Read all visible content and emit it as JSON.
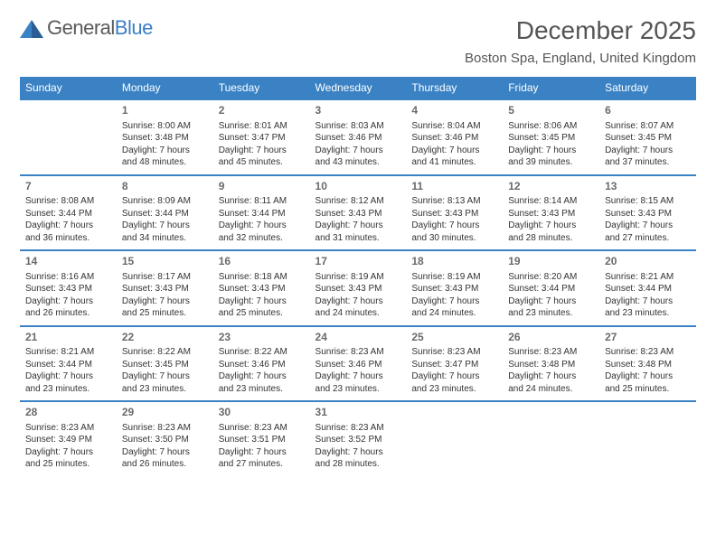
{
  "brand": {
    "name_part1": "General",
    "name_part2": "Blue"
  },
  "title": {
    "month": "December 2025",
    "location": "Boston Spa, England, United Kingdom"
  },
  "colors": {
    "header_bg": "#3a82c4",
    "header_text": "#ffffff",
    "rule": "#3a82c4",
    "text": "#333333",
    "muted": "#6a6a6a"
  },
  "fonts": {
    "title_size": 28,
    "location_size": 15,
    "dayhead_size": 12,
    "daynum_size": 12,
    "body_size": 10
  },
  "day_headers": [
    "Sunday",
    "Monday",
    "Tuesday",
    "Wednesday",
    "Thursday",
    "Friday",
    "Saturday"
  ],
  "weeks": [
    [
      null,
      {
        "n": "1",
        "sunrise": "Sunrise: 8:00 AM",
        "sunset": "Sunset: 3:48 PM",
        "d1": "Daylight: 7 hours",
        "d2": "and 48 minutes."
      },
      {
        "n": "2",
        "sunrise": "Sunrise: 8:01 AM",
        "sunset": "Sunset: 3:47 PM",
        "d1": "Daylight: 7 hours",
        "d2": "and 45 minutes."
      },
      {
        "n": "3",
        "sunrise": "Sunrise: 8:03 AM",
        "sunset": "Sunset: 3:46 PM",
        "d1": "Daylight: 7 hours",
        "d2": "and 43 minutes."
      },
      {
        "n": "4",
        "sunrise": "Sunrise: 8:04 AM",
        "sunset": "Sunset: 3:46 PM",
        "d1": "Daylight: 7 hours",
        "d2": "and 41 minutes."
      },
      {
        "n": "5",
        "sunrise": "Sunrise: 8:06 AM",
        "sunset": "Sunset: 3:45 PM",
        "d1": "Daylight: 7 hours",
        "d2": "and 39 minutes."
      },
      {
        "n": "6",
        "sunrise": "Sunrise: 8:07 AM",
        "sunset": "Sunset: 3:45 PM",
        "d1": "Daylight: 7 hours",
        "d2": "and 37 minutes."
      }
    ],
    [
      {
        "n": "7",
        "sunrise": "Sunrise: 8:08 AM",
        "sunset": "Sunset: 3:44 PM",
        "d1": "Daylight: 7 hours",
        "d2": "and 36 minutes."
      },
      {
        "n": "8",
        "sunrise": "Sunrise: 8:09 AM",
        "sunset": "Sunset: 3:44 PM",
        "d1": "Daylight: 7 hours",
        "d2": "and 34 minutes."
      },
      {
        "n": "9",
        "sunrise": "Sunrise: 8:11 AM",
        "sunset": "Sunset: 3:44 PM",
        "d1": "Daylight: 7 hours",
        "d2": "and 32 minutes."
      },
      {
        "n": "10",
        "sunrise": "Sunrise: 8:12 AM",
        "sunset": "Sunset: 3:43 PM",
        "d1": "Daylight: 7 hours",
        "d2": "and 31 minutes."
      },
      {
        "n": "11",
        "sunrise": "Sunrise: 8:13 AM",
        "sunset": "Sunset: 3:43 PM",
        "d1": "Daylight: 7 hours",
        "d2": "and 30 minutes."
      },
      {
        "n": "12",
        "sunrise": "Sunrise: 8:14 AM",
        "sunset": "Sunset: 3:43 PM",
        "d1": "Daylight: 7 hours",
        "d2": "and 28 minutes."
      },
      {
        "n": "13",
        "sunrise": "Sunrise: 8:15 AM",
        "sunset": "Sunset: 3:43 PM",
        "d1": "Daylight: 7 hours",
        "d2": "and 27 minutes."
      }
    ],
    [
      {
        "n": "14",
        "sunrise": "Sunrise: 8:16 AM",
        "sunset": "Sunset: 3:43 PM",
        "d1": "Daylight: 7 hours",
        "d2": "and 26 minutes."
      },
      {
        "n": "15",
        "sunrise": "Sunrise: 8:17 AM",
        "sunset": "Sunset: 3:43 PM",
        "d1": "Daylight: 7 hours",
        "d2": "and 25 minutes."
      },
      {
        "n": "16",
        "sunrise": "Sunrise: 8:18 AM",
        "sunset": "Sunset: 3:43 PM",
        "d1": "Daylight: 7 hours",
        "d2": "and 25 minutes."
      },
      {
        "n": "17",
        "sunrise": "Sunrise: 8:19 AM",
        "sunset": "Sunset: 3:43 PM",
        "d1": "Daylight: 7 hours",
        "d2": "and 24 minutes."
      },
      {
        "n": "18",
        "sunrise": "Sunrise: 8:19 AM",
        "sunset": "Sunset: 3:43 PM",
        "d1": "Daylight: 7 hours",
        "d2": "and 24 minutes."
      },
      {
        "n": "19",
        "sunrise": "Sunrise: 8:20 AM",
        "sunset": "Sunset: 3:44 PM",
        "d1": "Daylight: 7 hours",
        "d2": "and 23 minutes."
      },
      {
        "n": "20",
        "sunrise": "Sunrise: 8:21 AM",
        "sunset": "Sunset: 3:44 PM",
        "d1": "Daylight: 7 hours",
        "d2": "and 23 minutes."
      }
    ],
    [
      {
        "n": "21",
        "sunrise": "Sunrise: 8:21 AM",
        "sunset": "Sunset: 3:44 PM",
        "d1": "Daylight: 7 hours",
        "d2": "and 23 minutes."
      },
      {
        "n": "22",
        "sunrise": "Sunrise: 8:22 AM",
        "sunset": "Sunset: 3:45 PM",
        "d1": "Daylight: 7 hours",
        "d2": "and 23 minutes."
      },
      {
        "n": "23",
        "sunrise": "Sunrise: 8:22 AM",
        "sunset": "Sunset: 3:46 PM",
        "d1": "Daylight: 7 hours",
        "d2": "and 23 minutes."
      },
      {
        "n": "24",
        "sunrise": "Sunrise: 8:23 AM",
        "sunset": "Sunset: 3:46 PM",
        "d1": "Daylight: 7 hours",
        "d2": "and 23 minutes."
      },
      {
        "n": "25",
        "sunrise": "Sunrise: 8:23 AM",
        "sunset": "Sunset: 3:47 PM",
        "d1": "Daylight: 7 hours",
        "d2": "and 23 minutes."
      },
      {
        "n": "26",
        "sunrise": "Sunrise: 8:23 AM",
        "sunset": "Sunset: 3:48 PM",
        "d1": "Daylight: 7 hours",
        "d2": "and 24 minutes."
      },
      {
        "n": "27",
        "sunrise": "Sunrise: 8:23 AM",
        "sunset": "Sunset: 3:48 PM",
        "d1": "Daylight: 7 hours",
        "d2": "and 25 minutes."
      }
    ],
    [
      {
        "n": "28",
        "sunrise": "Sunrise: 8:23 AM",
        "sunset": "Sunset: 3:49 PM",
        "d1": "Daylight: 7 hours",
        "d2": "and 25 minutes."
      },
      {
        "n": "29",
        "sunrise": "Sunrise: 8:23 AM",
        "sunset": "Sunset: 3:50 PM",
        "d1": "Daylight: 7 hours",
        "d2": "and 26 minutes."
      },
      {
        "n": "30",
        "sunrise": "Sunrise: 8:23 AM",
        "sunset": "Sunset: 3:51 PM",
        "d1": "Daylight: 7 hours",
        "d2": "and 27 minutes."
      },
      {
        "n": "31",
        "sunrise": "Sunrise: 8:23 AM",
        "sunset": "Sunset: 3:52 PM",
        "d1": "Daylight: 7 hours",
        "d2": "and 28 minutes."
      },
      null,
      null,
      null
    ]
  ]
}
